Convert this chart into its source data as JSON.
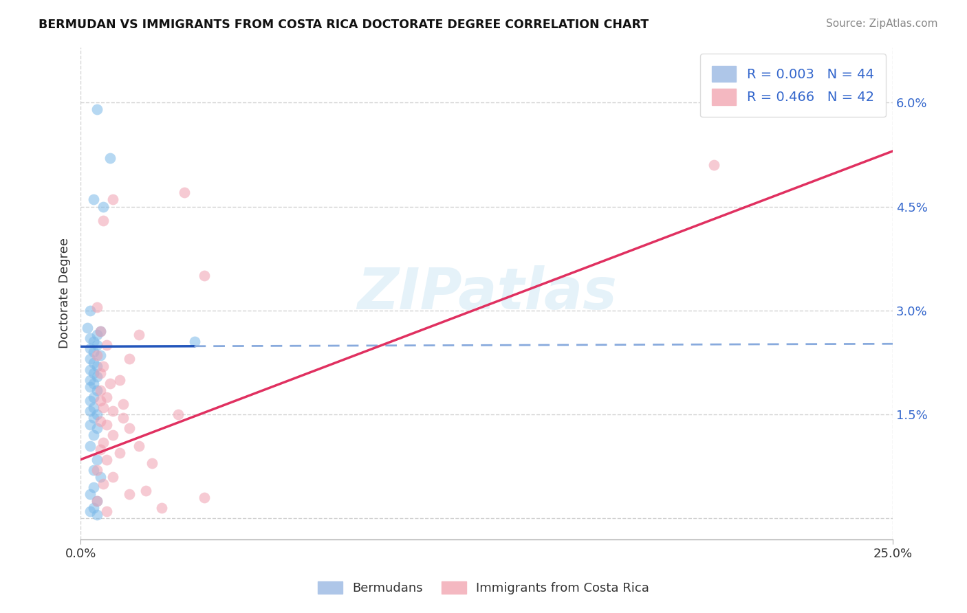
{
  "title": "BERMUDAN VS IMMIGRANTS FROM COSTA RICA DOCTORATE DEGREE CORRELATION CHART",
  "source": "Source: ZipAtlas.com",
  "ylabel_label": "Doctorate Degree",
  "xlim": [
    0.0,
    25.0
  ],
  "ylim": [
    -0.3,
    6.8
  ],
  "yticks": [
    0.0,
    1.5,
    3.0,
    4.5,
    6.0
  ],
  "ytick_labels": [
    "",
    "1.5%",
    "3.0%",
    "4.5%",
    "6.0%"
  ],
  "watermark_text": "ZIPatlas",
  "blue_color": "#7ab8e8",
  "pink_color": "#f0a0b0",
  "blue_line_solid_color": "#2255bb",
  "blue_line_dash_color": "#88aadd",
  "pink_line_color": "#e03060",
  "blue_scatter_x": [
    0.5,
    0.9,
    0.4,
    0.7,
    0.3,
    0.2,
    0.6,
    0.5,
    0.3,
    0.4,
    0.5,
    0.3,
    0.4,
    0.6,
    0.3,
    0.4,
    0.5,
    0.3,
    0.4,
    0.5,
    0.3,
    0.4,
    0.3,
    0.5,
    0.4,
    0.3,
    0.4,
    0.3,
    0.5,
    0.4,
    0.3,
    0.5,
    0.4,
    0.3,
    3.5,
    0.5,
    0.4,
    0.6,
    0.4,
    0.3,
    0.5,
    0.4,
    0.3,
    0.5
  ],
  "blue_scatter_y": [
    5.9,
    5.2,
    4.6,
    4.5,
    3.0,
    2.75,
    2.7,
    2.65,
    2.6,
    2.55,
    2.5,
    2.45,
    2.4,
    2.35,
    2.3,
    2.25,
    2.2,
    2.15,
    2.1,
    2.05,
    2.0,
    1.95,
    1.9,
    1.85,
    1.75,
    1.7,
    1.6,
    1.55,
    1.5,
    1.45,
    1.35,
    1.3,
    1.2,
    1.05,
    2.55,
    0.85,
    0.7,
    0.6,
    0.45,
    0.35,
    0.25,
    0.15,
    0.1,
    0.05
  ],
  "pink_scatter_x": [
    1.0,
    0.7,
    3.8,
    0.5,
    0.6,
    1.8,
    0.8,
    0.5,
    1.5,
    0.7,
    0.6,
    1.2,
    0.9,
    0.6,
    0.8,
    1.3,
    0.7,
    1.0,
    0.6,
    0.8,
    1.5,
    1.0,
    0.7,
    1.8,
    0.6,
    1.2,
    0.8,
    2.2,
    0.5,
    3.2,
    1.0,
    0.7,
    2.0,
    1.5,
    3.8,
    0.5,
    2.5,
    1.3,
    3.0,
    0.6,
    0.8,
    19.5
  ],
  "pink_scatter_y": [
    4.6,
    4.3,
    3.5,
    3.05,
    2.7,
    2.65,
    2.5,
    2.35,
    2.3,
    2.2,
    2.1,
    2.0,
    1.95,
    1.85,
    1.75,
    1.65,
    1.6,
    1.55,
    1.4,
    1.35,
    1.3,
    1.2,
    1.1,
    1.05,
    1.0,
    0.95,
    0.85,
    0.8,
    0.7,
    4.7,
    0.6,
    0.5,
    0.4,
    0.35,
    0.3,
    0.25,
    0.15,
    1.45,
    1.5,
    1.7,
    0.1,
    5.1
  ],
  "blue_trend_x0": 0.0,
  "blue_trend_x1": 25.0,
  "blue_trend_y0": 2.48,
  "blue_trend_y1": 2.52,
  "blue_solid_end_x": 3.5,
  "pink_trend_x0": 0.0,
  "pink_trend_x1": 25.0,
  "pink_trend_y0": 0.85,
  "pink_trend_y1": 5.3,
  "background_color": "#ffffff",
  "grid_color": "#cccccc",
  "title_color": "#111111",
  "source_color": "#888888",
  "tick_label_color": "#3366cc",
  "legend_label_color": "#3366cc"
}
